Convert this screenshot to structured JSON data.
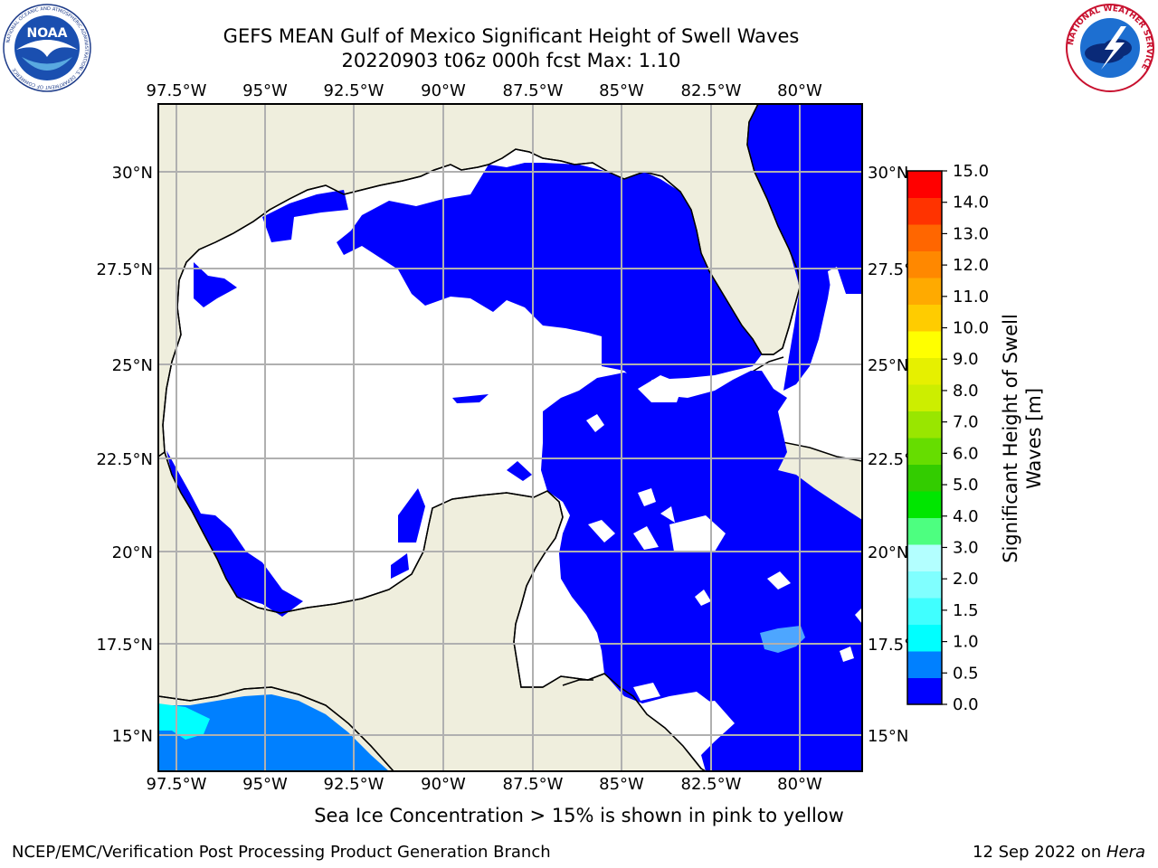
{
  "title": {
    "line1": "GEFS MEAN Gulf of Mexico Significant Height of Swell Waves",
    "line2": "20220903 t06z 000h fcst   Max: 1.10"
  },
  "map": {
    "lon_ticks": [
      "97.5°W",
      "95°W",
      "92.5°W",
      "90°W",
      "87.5°W",
      "85°W",
      "82.5°W",
      "80°W"
    ],
    "lat_ticks": [
      "30°N",
      "27.5°N",
      "25°N",
      "22.5°N",
      "20°N",
      "17.5°N",
      "15°N"
    ],
    "land_color": "#efeedd",
    "swell_color": "#0000ff"
  },
  "colorbar": {
    "label": "Significant Height of Swell Waves [m]",
    "ticks": [
      "15.0",
      "14.0",
      "13.0",
      "12.0",
      "11.0",
      "10.0",
      "9.0",
      "8.0",
      "7.0",
      "6.0",
      "5.0",
      "4.0",
      "3.0",
      "2.0",
      "1.5",
      "1.0",
      "0.5",
      "0.0"
    ],
    "colors": [
      "#0000ff",
      "#0080ff",
      "#00ffff",
      "#40ffff",
      "#80ffff",
      "#b3ffff",
      "#4dff80",
      "#00e600",
      "#33cc00",
      "#66dd00",
      "#99e600",
      "#ccee00",
      "#e6f000",
      "#ffff00",
      "#ffcc00",
      "#ffaa00",
      "#ff8800",
      "#ff6600",
      "#ff3300",
      "#ff0000"
    ]
  },
  "logos": {
    "noaa": "NOAA",
    "noaa_ring": "NATIONAL OCEANIC AND ATMOSPHERIC ADMINISTRATION",
    "noaa_dept": "U.S. DEPARTMENT OF COMMERCE",
    "nws_ring": "NATIONAL WEATHER SERVICE"
  },
  "note": "Sea Ice Concentration > 15% is shown in pink to yellow",
  "footer": {
    "left": "NCEP/EMC/Verification Post Processing Product Generation Branch",
    "right_prefix": "12 Sep 2022 on ",
    "right_host": "Hera"
  }
}
